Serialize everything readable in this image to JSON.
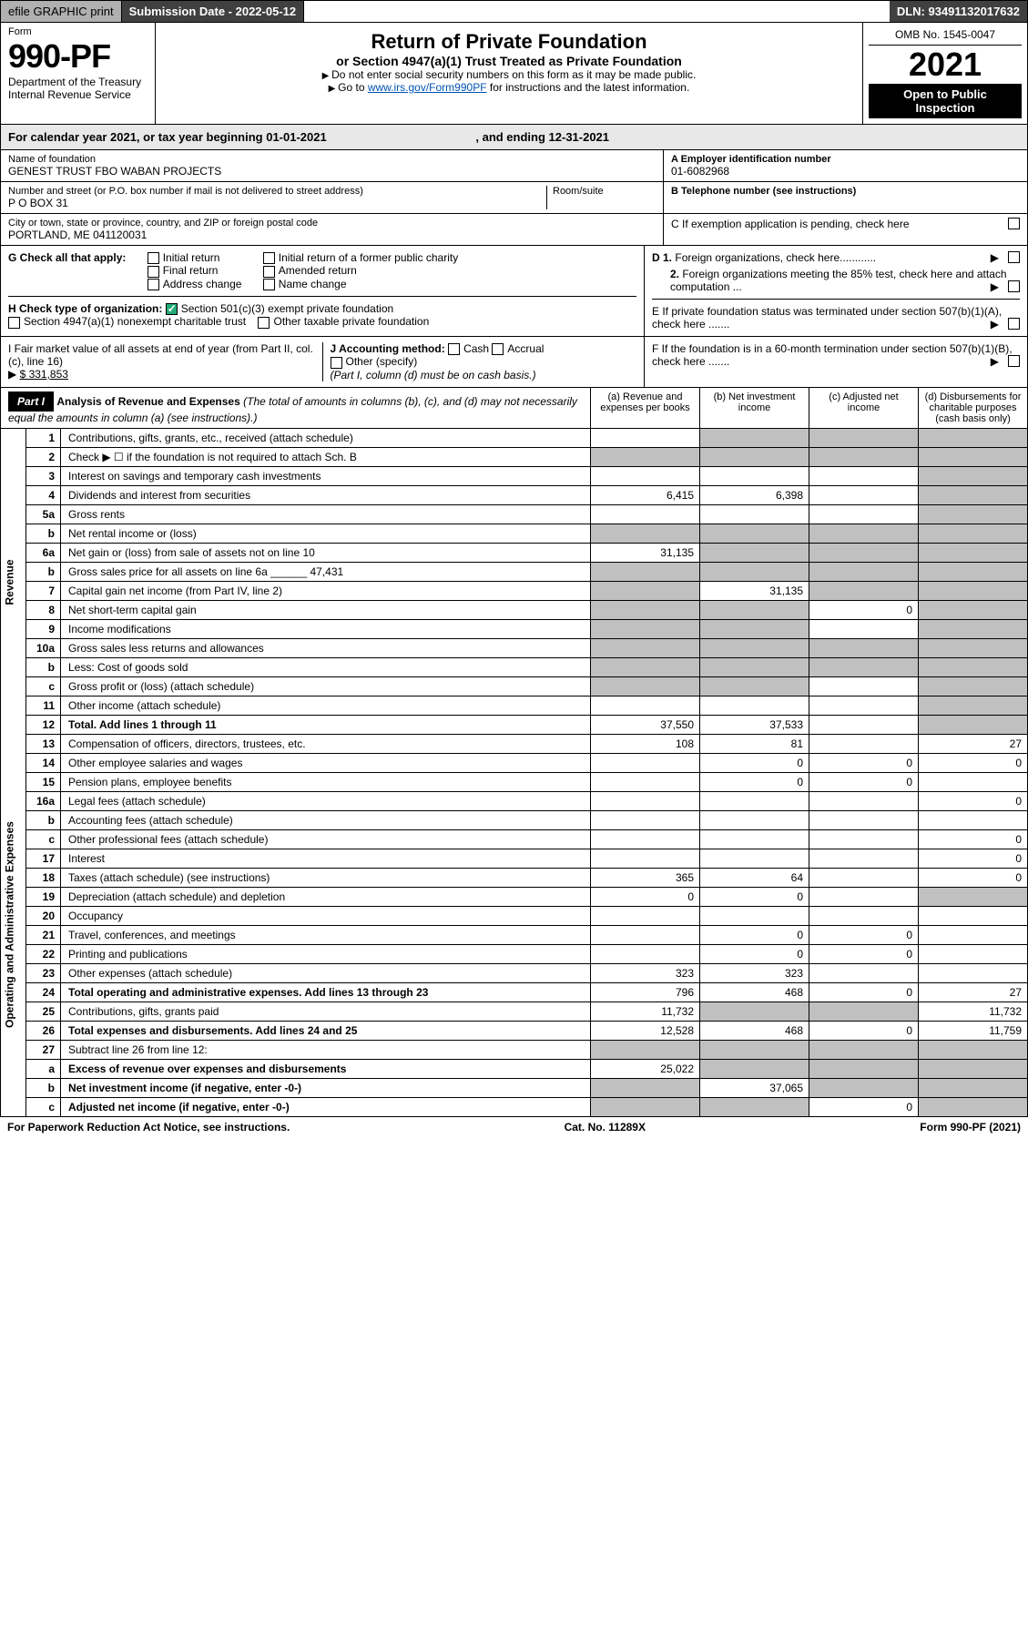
{
  "header": {
    "efile": "efile GRAPHIC print",
    "submission_label": "Submission Date - 2022-05-12",
    "dln": "DLN: 93491132017632"
  },
  "form_box": {
    "form_label": "Form",
    "form_no": "990-PF",
    "dept1": "Department of the Treasury",
    "dept2": "Internal Revenue Service"
  },
  "title_box": {
    "title": "Return of Private Foundation",
    "subtitle": "or Section 4947(a)(1) Trust Treated as Private Foundation",
    "inst1": "Do not enter social security numbers on this form as it may be made public.",
    "inst2_a": "Go to ",
    "inst2_link": "www.irs.gov/Form990PF",
    "inst2_b": " for instructions and the latest information."
  },
  "right_box": {
    "omb": "OMB No. 1545-0047",
    "year": "2021",
    "open": "Open to Public Inspection"
  },
  "year_line": {
    "a": "For calendar year 2021, or tax year beginning 01-01-2021",
    "b": ", and ending 12-31-2021"
  },
  "ident": {
    "name_lbl": "Name of foundation",
    "name": "GENEST TRUST FBO WABAN PROJECTS",
    "addr_lbl": "Number and street (or P.O. box number if mail is not delivered to street address)",
    "addr": "P O BOX 31",
    "room_lbl": "Room/suite",
    "city_lbl": "City or town, state or province, country, and ZIP or foreign postal code",
    "city": "PORTLAND, ME  041120031",
    "ein_lbl": "A Employer identification number",
    "ein": "01-6082968",
    "phone_lbl": "B Telephone number (see instructions)",
    "c_lbl": "C If exemption application is pending, check here",
    "d1": "D 1. Foreign organizations, check here............",
    "d2": "2. Foreign organizations meeting the 85% test, check here and attach computation ...",
    "e_lbl": "E  If private foundation status was terminated under section 507(b)(1)(A), check here .......",
    "f_lbl": "F  If the foundation is in a 60-month termination under section 507(b)(1)(B), check here ......."
  },
  "g": {
    "lbl": "G Check all that apply:",
    "opts": [
      "Initial return",
      "Final return",
      "Address change",
      "Initial return of a former public charity",
      "Amended return",
      "Name change"
    ]
  },
  "h": {
    "lbl": "H Check type of organization:",
    "opt1": "Section 501(c)(3) exempt private foundation",
    "opt2": "Section 4947(a)(1) nonexempt charitable trust",
    "opt3": "Other taxable private foundation"
  },
  "i": {
    "lbl": "I Fair market value of all assets at end of year (from Part II, col. (c), line 16)",
    "val": "$  331,853"
  },
  "j": {
    "lbl": "J Accounting method:",
    "cash": "Cash",
    "accrual": "Accrual",
    "other": "Other (specify)",
    "note": "(Part I, column (d) must be on cash basis.)"
  },
  "part1": {
    "title": "Part I",
    "heading": "Analysis of Revenue and Expenses",
    "heading_note": " (The total of amounts in columns (b), (c), and (d) may not necessarily equal the amounts in column (a) (see instructions).)",
    "col_a": "(a) Revenue and expenses per books",
    "col_b": "(b) Net investment income",
    "col_c": "(c) Adjusted net income",
    "col_d": "(d) Disbursements for charitable purposes (cash basis only)"
  },
  "side_labels": {
    "rev": "Revenue",
    "exp": "Operating and Administrative Expenses"
  },
  "rows": [
    {
      "n": "1",
      "t": "Contributions, gifts, grants, etc., received (attach schedule)",
      "a": "",
      "b": "g",
      "c": "g",
      "d": "g"
    },
    {
      "n": "2",
      "t": "Check ▶ ☐ if the foundation is not required to attach Sch. B",
      "a": "g",
      "b": "g",
      "c": "g",
      "d": "g"
    },
    {
      "n": "3",
      "t": "Interest on savings and temporary cash investments",
      "a": "",
      "b": "",
      "c": "",
      "d": "g"
    },
    {
      "n": "4",
      "t": "Dividends and interest from securities",
      "a": "6,415",
      "b": "6,398",
      "c": "",
      "d": "g"
    },
    {
      "n": "5a",
      "t": "Gross rents",
      "a": "",
      "b": "",
      "c": "",
      "d": "g"
    },
    {
      "n": "b",
      "t": "Net rental income or (loss)",
      "a": "g",
      "b": "g",
      "c": "g",
      "d": "g"
    },
    {
      "n": "6a",
      "t": "Net gain or (loss) from sale of assets not on line 10",
      "a": "31,135",
      "b": "g",
      "c": "g",
      "d": "g"
    },
    {
      "n": "b",
      "t": "Gross sales price for all assets on line 6a ______ 47,431",
      "a": "g",
      "b": "g",
      "c": "g",
      "d": "g"
    },
    {
      "n": "7",
      "t": "Capital gain net income (from Part IV, line 2)",
      "a": "g",
      "b": "31,135",
      "c": "g",
      "d": "g"
    },
    {
      "n": "8",
      "t": "Net short-term capital gain",
      "a": "g",
      "b": "g",
      "c": "0",
      "d": "g"
    },
    {
      "n": "9",
      "t": "Income modifications",
      "a": "g",
      "b": "g",
      "c": "",
      "d": "g"
    },
    {
      "n": "10a",
      "t": "Gross sales less returns and allowances",
      "a": "g",
      "b": "g",
      "c": "g",
      "d": "g"
    },
    {
      "n": "b",
      "t": "Less: Cost of goods sold",
      "a": "g",
      "b": "g",
      "c": "g",
      "d": "g"
    },
    {
      "n": "c",
      "t": "Gross profit or (loss) (attach schedule)",
      "a": "g",
      "b": "g",
      "c": "",
      "d": "g"
    },
    {
      "n": "11",
      "t": "Other income (attach schedule)",
      "a": "",
      "b": "",
      "c": "",
      "d": "g"
    },
    {
      "n": "12",
      "t": "Total. Add lines 1 through 11",
      "a": "37,550",
      "b": "37,533",
      "c": "",
      "d": "g",
      "bold": true
    },
    {
      "n": "13",
      "t": "Compensation of officers, directors, trustees, etc.",
      "a": "108",
      "b": "81",
      "c": "",
      "d": "27"
    },
    {
      "n": "14",
      "t": "Other employee salaries and wages",
      "a": "",
      "b": "0",
      "c": "0",
      "d": "0"
    },
    {
      "n": "15",
      "t": "Pension plans, employee benefits",
      "a": "",
      "b": "0",
      "c": "0",
      "d": ""
    },
    {
      "n": "16a",
      "t": "Legal fees (attach schedule)",
      "a": "",
      "b": "",
      "c": "",
      "d": "0"
    },
    {
      "n": "b",
      "t": "Accounting fees (attach schedule)",
      "a": "",
      "b": "",
      "c": "",
      "d": ""
    },
    {
      "n": "c",
      "t": "Other professional fees (attach schedule)",
      "a": "",
      "b": "",
      "c": "",
      "d": "0"
    },
    {
      "n": "17",
      "t": "Interest",
      "a": "",
      "b": "",
      "c": "",
      "d": "0"
    },
    {
      "n": "18",
      "t": "Taxes (attach schedule) (see instructions)",
      "a": "365",
      "b": "64",
      "c": "",
      "d": "0"
    },
    {
      "n": "19",
      "t": "Depreciation (attach schedule) and depletion",
      "a": "0",
      "b": "0",
      "c": "",
      "d": "g"
    },
    {
      "n": "20",
      "t": "Occupancy",
      "a": "",
      "b": "",
      "c": "",
      "d": ""
    },
    {
      "n": "21",
      "t": "Travel, conferences, and meetings",
      "a": "",
      "b": "0",
      "c": "0",
      "d": ""
    },
    {
      "n": "22",
      "t": "Printing and publications",
      "a": "",
      "b": "0",
      "c": "0",
      "d": ""
    },
    {
      "n": "23",
      "t": "Other expenses (attach schedule)",
      "a": "323",
      "b": "323",
      "c": "",
      "d": ""
    },
    {
      "n": "24",
      "t": "Total operating and administrative expenses. Add lines 13 through 23",
      "a": "796",
      "b": "468",
      "c": "0",
      "d": "27",
      "bold": true
    },
    {
      "n": "25",
      "t": "Contributions, gifts, grants paid",
      "a": "11,732",
      "b": "g",
      "c": "g",
      "d": "11,732"
    },
    {
      "n": "26",
      "t": "Total expenses and disbursements. Add lines 24 and 25",
      "a": "12,528",
      "b": "468",
      "c": "0",
      "d": "11,759",
      "bold": true
    },
    {
      "n": "27",
      "t": "Subtract line 26 from line 12:",
      "a": "g",
      "b": "g",
      "c": "g",
      "d": "g"
    },
    {
      "n": "a",
      "t": "Excess of revenue over expenses and disbursements",
      "a": "25,022",
      "b": "g",
      "c": "g",
      "d": "g",
      "bold": true
    },
    {
      "n": "b",
      "t": "Net investment income (if negative, enter -0-)",
      "a": "g",
      "b": "37,065",
      "c": "g",
      "d": "g",
      "bold": true
    },
    {
      "n": "c",
      "t": "Adjusted net income (if negative, enter -0-)",
      "a": "g",
      "b": "g",
      "c": "0",
      "d": "g",
      "bold": true
    }
  ],
  "footer": {
    "left": "For Paperwork Reduction Act Notice, see instructions.",
    "mid": "Cat. No. 11289X",
    "right": "Form 990-PF (2021)"
  },
  "colors": {
    "grey": "#c0c0c0"
  }
}
